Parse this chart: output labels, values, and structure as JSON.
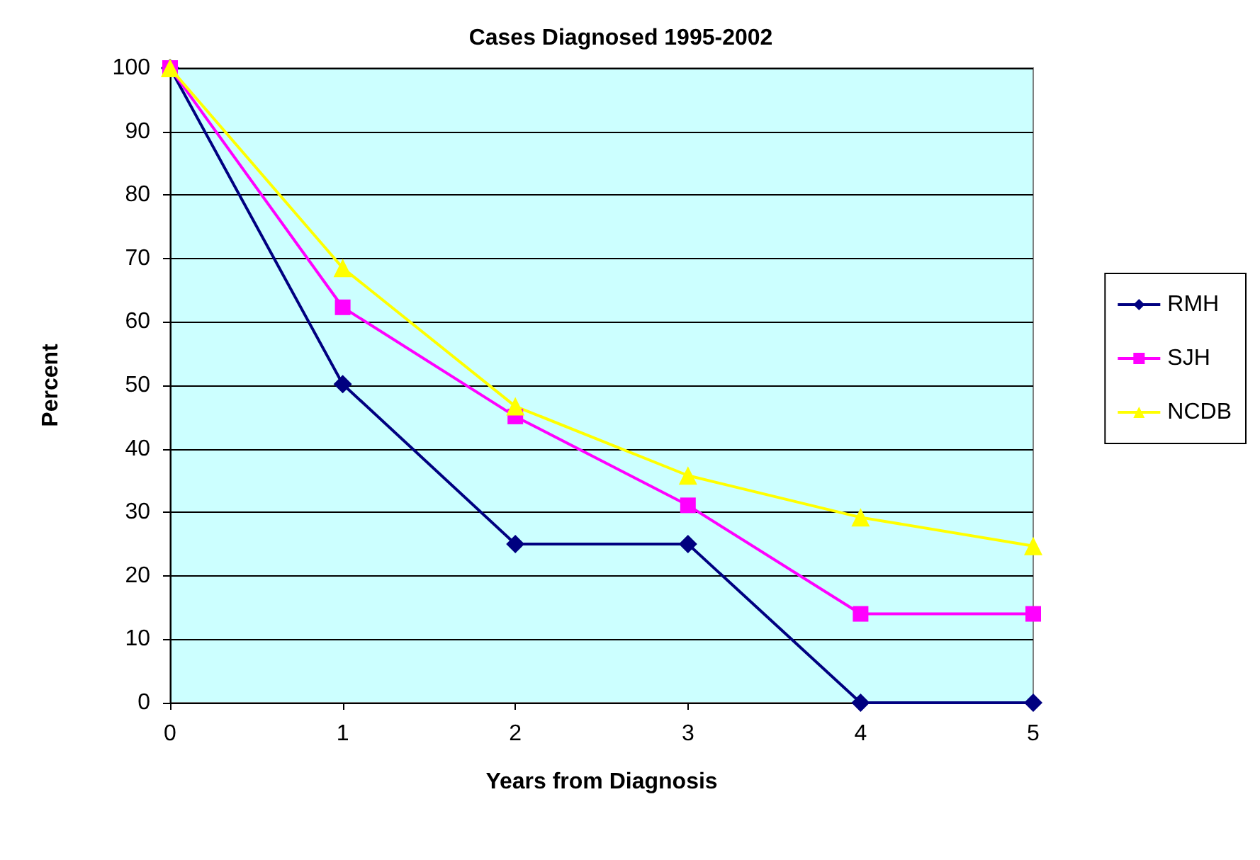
{
  "chart_data": {
    "type": "line",
    "title": "Cases Diagnosed 1995-2002",
    "xlabel": "Years from Diagnosis",
    "ylabel": "Percent",
    "categories": [
      "0",
      "1",
      "2",
      "3",
      "4",
      "5"
    ],
    "series": [
      {
        "name": "RMH",
        "color": "#000080",
        "marker": "diamond",
        "values": [
          100,
          50.2,
          25,
          25,
          0,
          0
        ]
      },
      {
        "name": "SJH",
        "color": "#ff00ff",
        "marker": "square",
        "values": [
          100,
          62.3,
          45.1,
          31.1,
          14,
          14
        ]
      },
      {
        "name": "NCDB",
        "color": "#ffff00",
        "marker": "triangle",
        "values": [
          100,
          68.5,
          46.7,
          35.8,
          29.2,
          24.7
        ]
      }
    ],
    "ylim": [
      0,
      100
    ],
    "yticks": [
      0,
      10,
      20,
      30,
      40,
      50,
      60,
      70,
      80,
      90,
      100
    ],
    "grid": "y",
    "legend": "right",
    "line_style": "solid"
  }
}
